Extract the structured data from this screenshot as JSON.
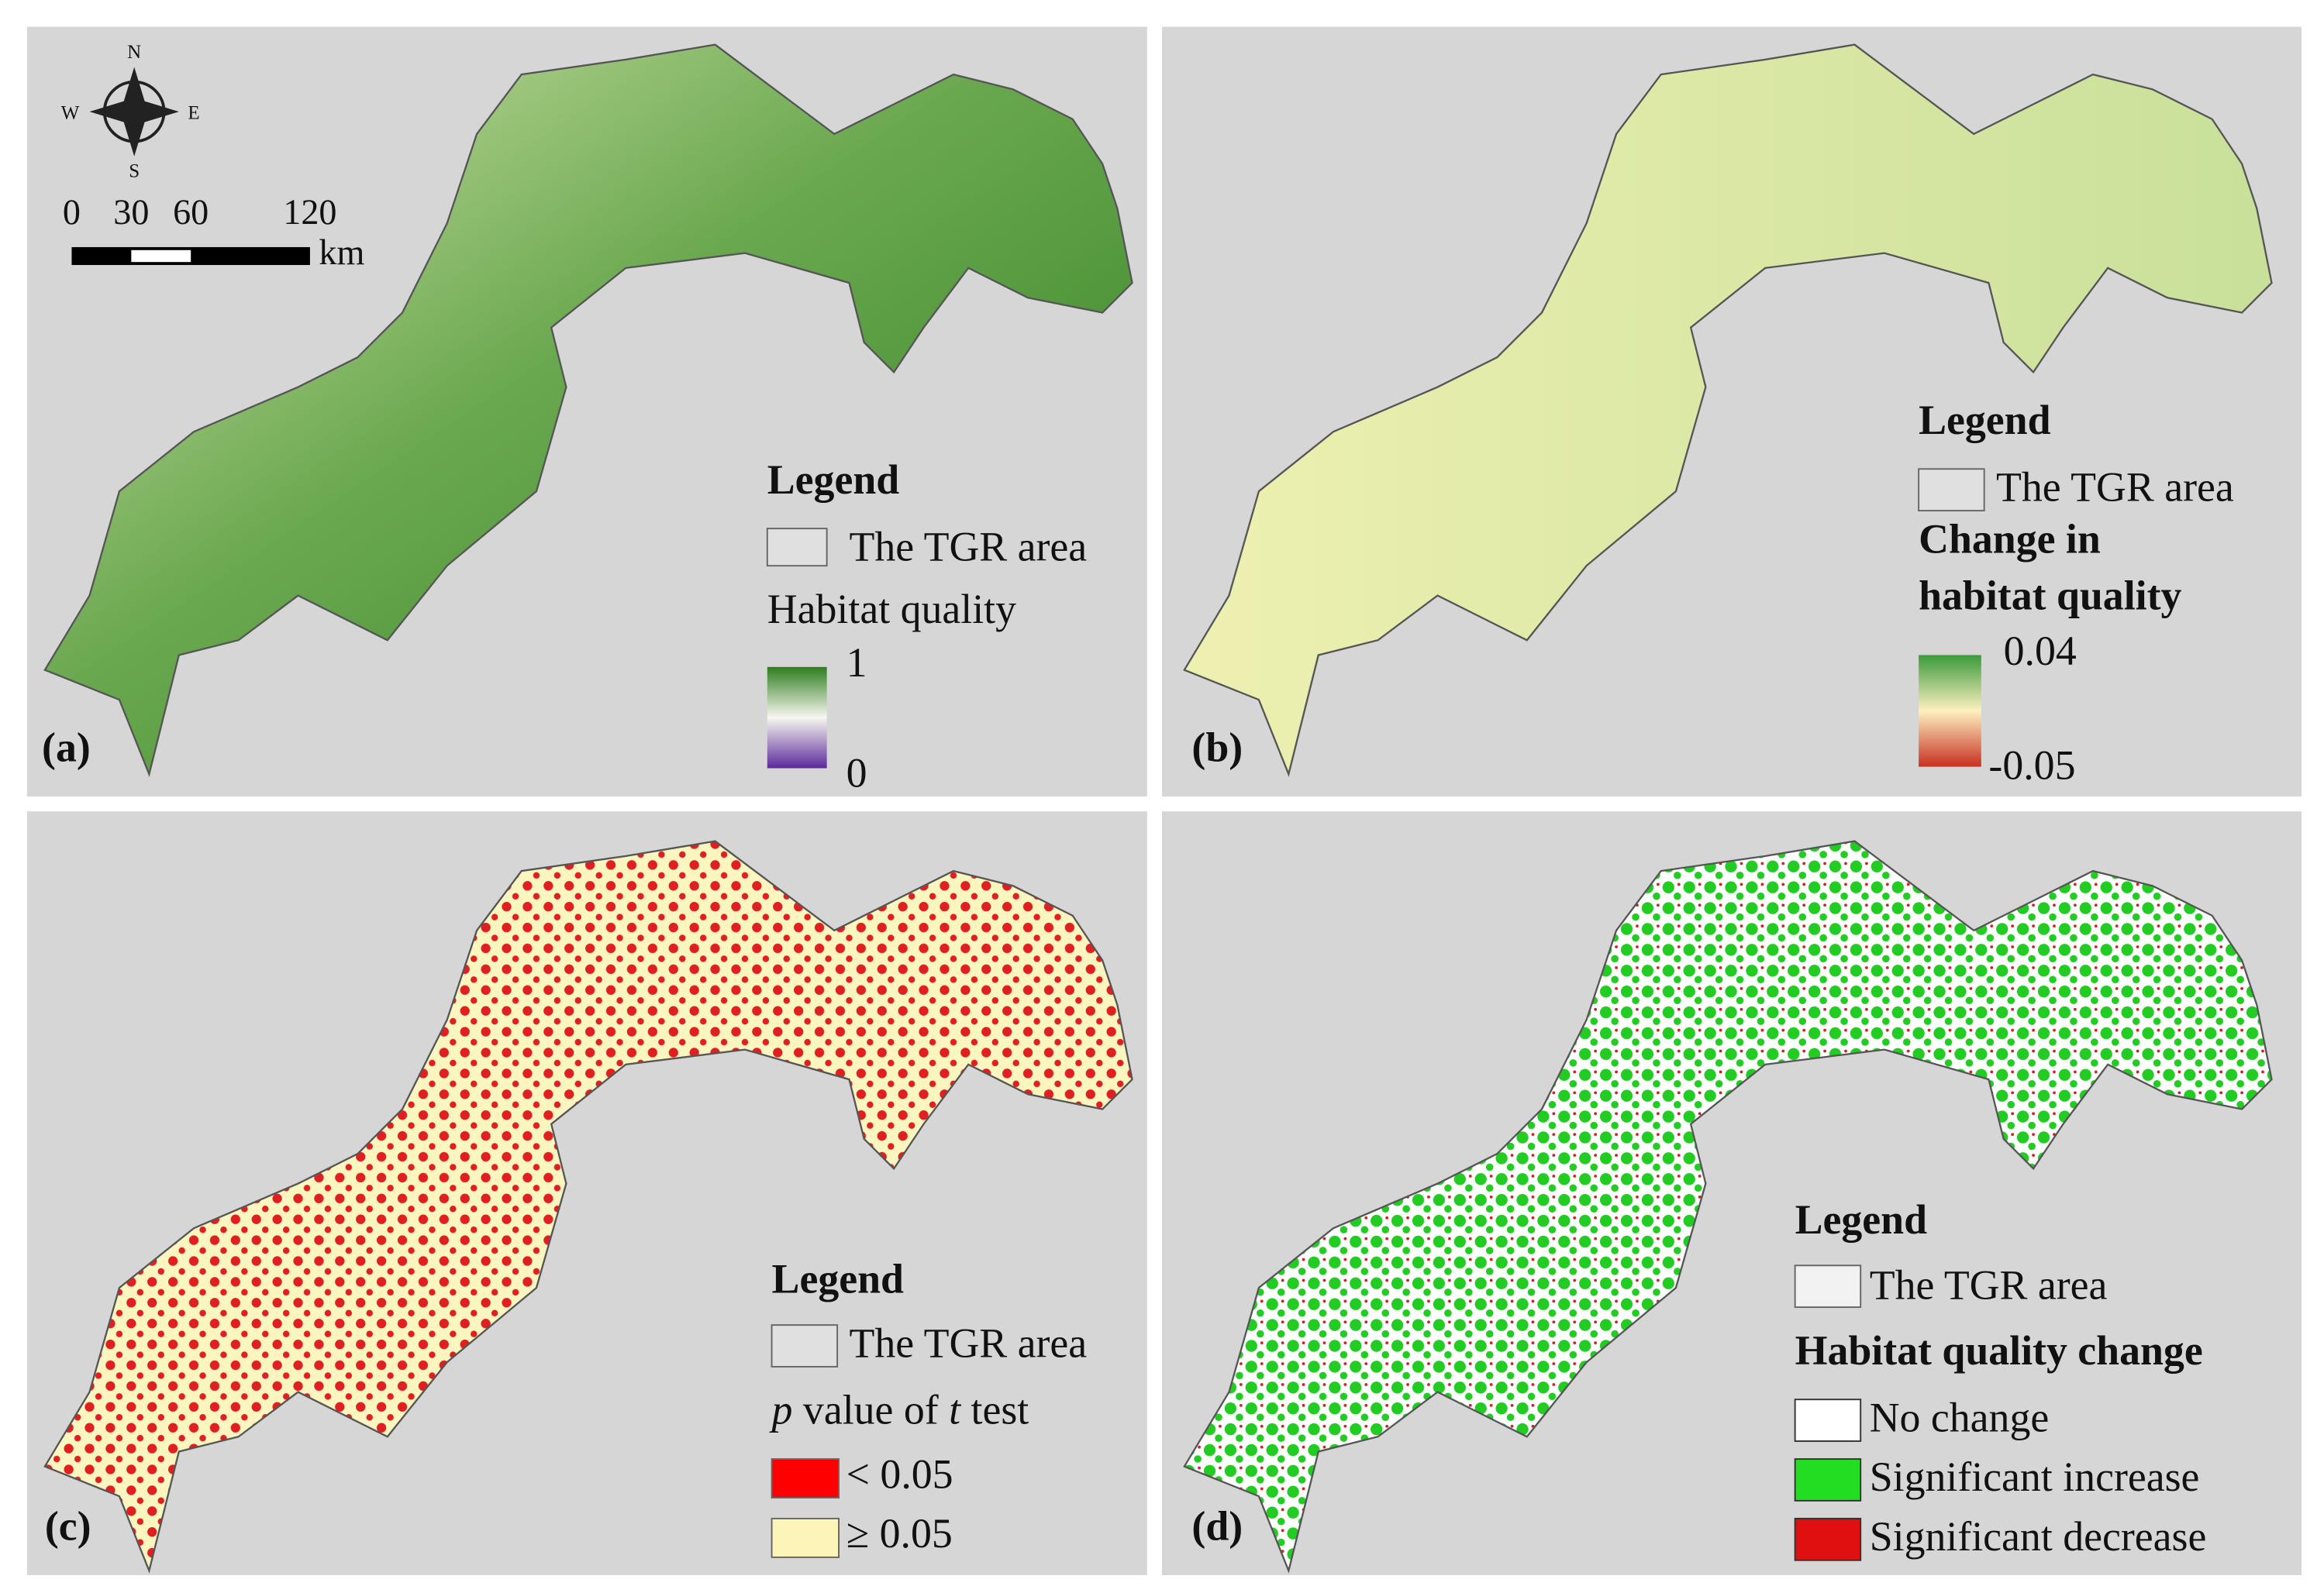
{
  "compass": {
    "n": "N",
    "s": "S",
    "e": "E",
    "w": "W"
  },
  "scale_bar": {
    "ticks": [
      "0",
      "30",
      "60",
      "120"
    ],
    "unit": "km"
  },
  "panels": [
    {
      "label": "(a)",
      "legend": {
        "title": "Legend",
        "boundary": "The TGR area",
        "variable": "Habitat quality",
        "max": "1",
        "min": "0"
      }
    },
    {
      "label": "(b)",
      "legend": {
        "title": "Legend",
        "boundary": "The TGR area",
        "variable": [
          "Change in",
          "habitat quality"
        ],
        "max": "0.04",
        "min": "-0.05"
      }
    },
    {
      "label": "(c)",
      "legend": {
        "title": "Legend",
        "boundary": "The TGR area",
        "variable": [
          "p",
          " value of ",
          "t",
          " test"
        ],
        "classes": [
          "< 0.05",
          "≥ 0.05"
        ]
      }
    },
    {
      "label": "(d)",
      "legend": {
        "title": "Legend",
        "boundary": "The TGR area",
        "variable": "Habitat quality change",
        "classes": [
          "No change",
          "Significant increase",
          "Significant decrease"
        ]
      }
    }
  ]
}
